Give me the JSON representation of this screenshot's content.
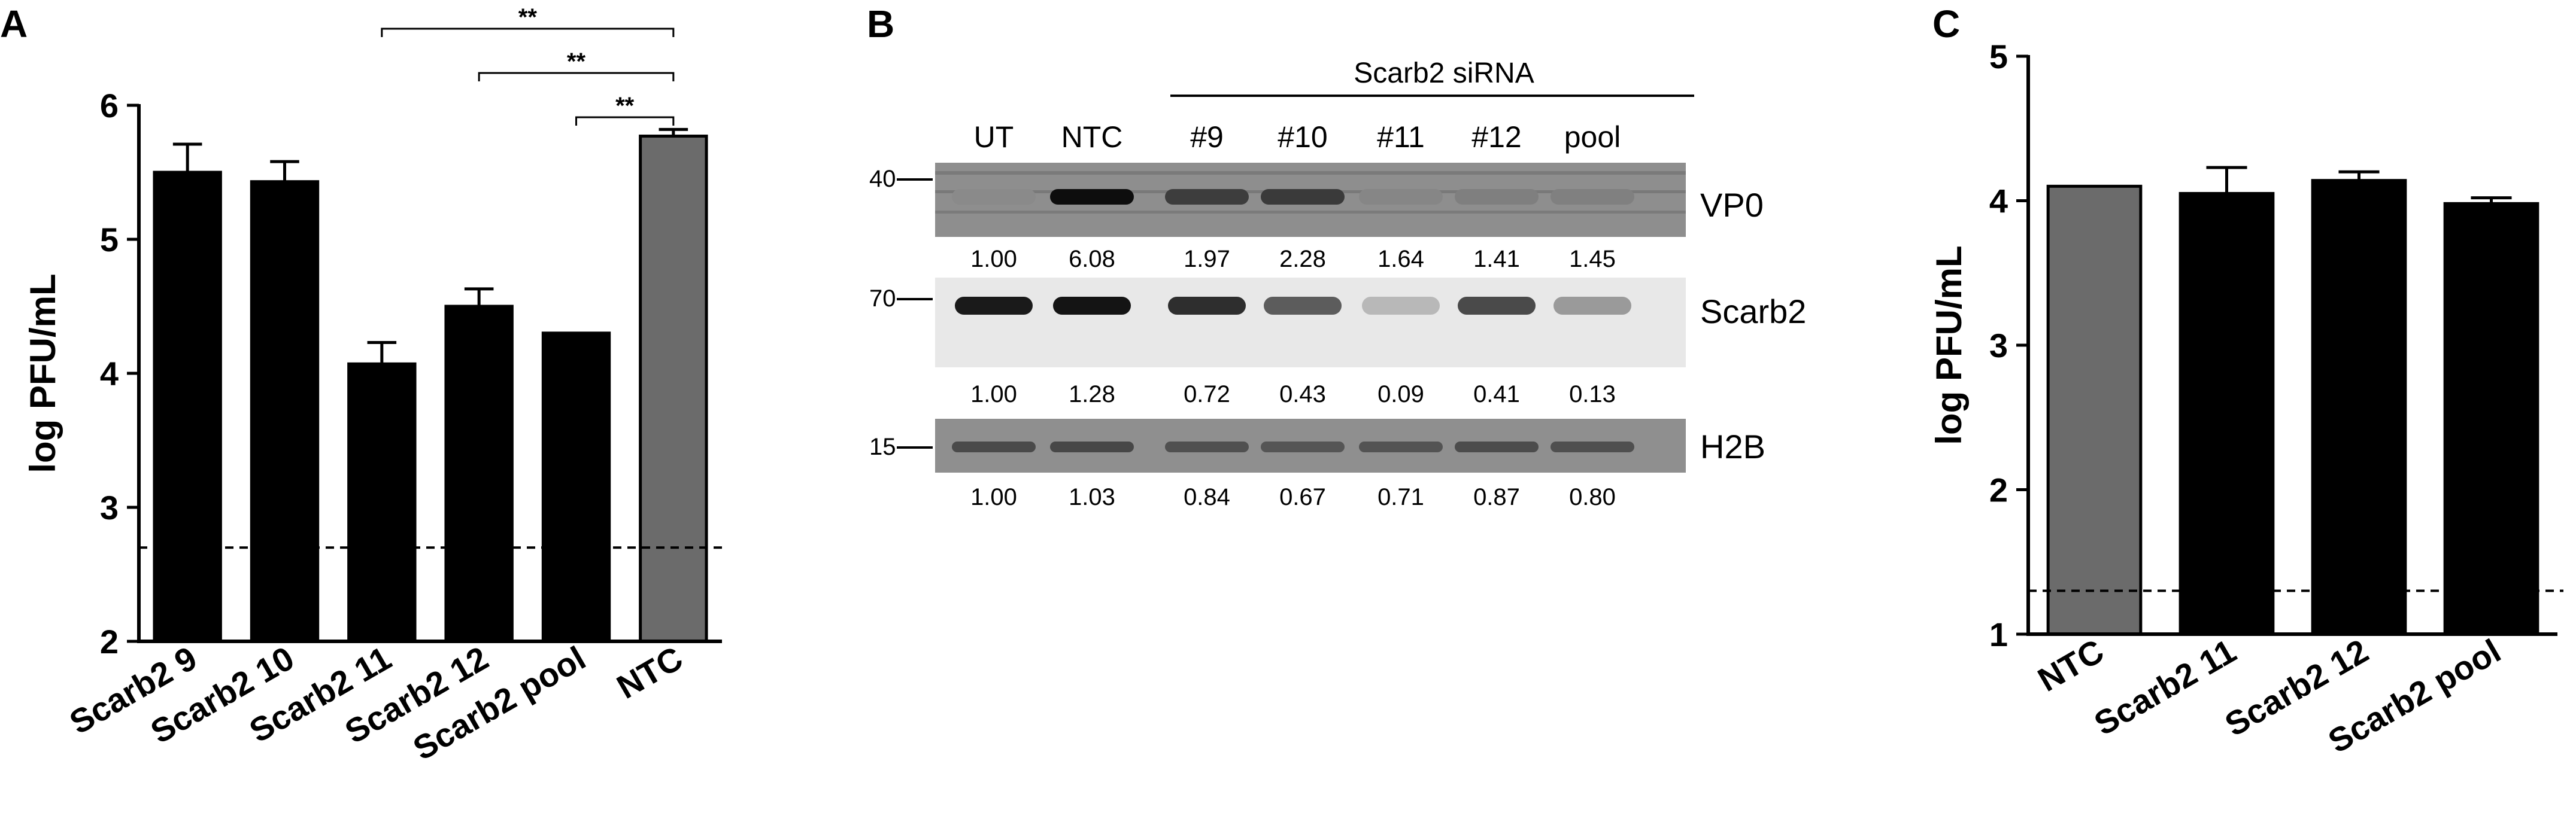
{
  "panel_letters": {
    "a": "A",
    "b": "B",
    "c": "C"
  },
  "chart_data": [
    {
      "panel": "A",
      "type": "bar",
      "ylabel": "log PFU/mL",
      "ylim": [
        2,
        6
      ],
      "yticks": [
        "2",
        "3",
        "4",
        "5",
        "6"
      ],
      "categories": [
        "Scarb2 9",
        "Scarb2 10",
        "Scarb2 11",
        "Scarb2 12",
        "Scarb2 pool",
        "NTC"
      ],
      "values": [
        5.5,
        5.43,
        4.07,
        4.5,
        4.3,
        5.77
      ],
      "errors": [
        0.21,
        0.15,
        0.16,
        0.13,
        0.0,
        0.05
      ],
      "bar_colors": [
        "#000000",
        "#000000",
        "#000000",
        "#000000",
        "#000000",
        "#6b6b6b"
      ],
      "reference_line": 2.7,
      "significance": [
        {
          "from": "Scarb2 11",
          "to": "NTC",
          "label": "**"
        },
        {
          "from": "Scarb2 12",
          "to": "NTC",
          "label": "**"
        },
        {
          "from": "Scarb2 pool",
          "to": "NTC",
          "label": "**"
        }
      ]
    },
    {
      "panel": "B",
      "type": "table",
      "group_label": "Scarb2 siRNA",
      "lanes": [
        "UT",
        "NTC",
        "#9",
        "#10",
        "#11",
        "#12",
        "pool"
      ],
      "blots": [
        {
          "name": "VP0",
          "marker": "40",
          "values": [
            "1.00",
            "6.08",
            "1.97",
            "2.28",
            "1.64",
            "1.41",
            "1.45"
          ]
        },
        {
          "name": "Scarb2",
          "marker": "70",
          "values": [
            "1.00",
            "1.28",
            "0.72",
            "0.43",
            "0.09",
            "0.41",
            "0.13"
          ]
        },
        {
          "name": "H2B",
          "marker": "15",
          "values": [
            "1.00",
            "1.03",
            "0.84",
            "0.67",
            "0.71",
            "0.87",
            "0.80"
          ]
        }
      ]
    },
    {
      "panel": "C",
      "type": "bar",
      "ylabel": "log PFU/mL",
      "ylim": [
        1,
        5
      ],
      "yticks": [
        "1",
        "2",
        "3",
        "4",
        "5"
      ],
      "categories": [
        "NTC",
        "Scarb2 11",
        "Scarb2 12",
        "Scarb2 pool"
      ],
      "values": [
        4.1,
        4.05,
        4.14,
        3.98
      ],
      "errors": [
        0.0,
        0.18,
        0.06,
        0.04
      ],
      "bar_colors": [
        "#6b6b6b",
        "#000000",
        "#000000",
        "#000000"
      ],
      "reference_line": 1.3
    }
  ]
}
